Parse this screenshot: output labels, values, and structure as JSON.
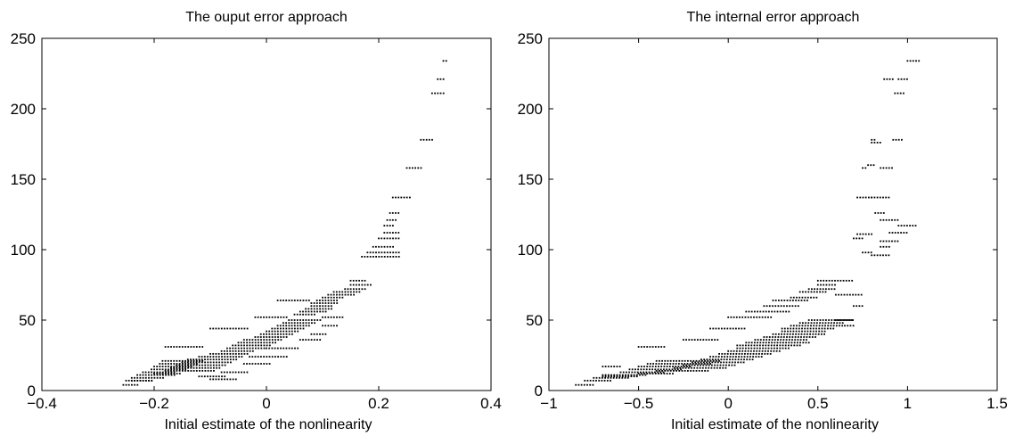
{
  "chart_data": [
    {
      "type": "scatter",
      "title": "The ouput error approach",
      "xlabel": "Initial estimate of the nonlinearity",
      "ylabel": "",
      "xlim": [
        -0.4,
        0.4
      ],
      "ylim": [
        0,
        250
      ],
      "xticks": [
        -0.4,
        -0.2,
        0,
        0.2,
        0.4
      ],
      "xtick_labels": [
        "−0.4",
        "−0.2",
        "0",
        "0.2",
        "0.4"
      ],
      "yticks": [
        0,
        50,
        100,
        150,
        200,
        250
      ],
      "ytick_labels": [
        "0",
        "50",
        "100",
        "150",
        "200",
        "250"
      ],
      "grid": false,
      "marker_color": "#000000",
      "series": [
        {
          "segments": [
            [
              -0.255,
              -0.225,
              4
            ],
            [
              -0.25,
              -0.2,
              7
            ],
            [
              -0.24,
              -0.18,
              9
            ],
            [
              -0.23,
              -0.16,
              11
            ],
            [
              -0.22,
              -0.16,
              13
            ],
            [
              -0.205,
              -0.14,
              15
            ],
            [
              -0.2,
              -0.13,
              17
            ],
            [
              -0.19,
              -0.12,
              19
            ],
            [
              -0.185,
              -0.11,
              21
            ],
            [
              -0.24,
              -0.2,
              7
            ],
            [
              -0.2,
              -0.15,
              12
            ],
            [
              -0.18,
              -0.09,
              14
            ],
            [
              -0.17,
              -0.08,
              16
            ],
            [
              -0.16,
              -0.07,
              18
            ],
            [
              -0.15,
              -0.06,
              20
            ],
            [
              -0.14,
              -0.05,
              22
            ],
            [
              -0.12,
              -0.04,
              24
            ],
            [
              -0.1,
              -0.03,
              26
            ],
            [
              -0.08,
              -0.02,
              28
            ],
            [
              -0.07,
              0.0,
              30
            ],
            [
              -0.06,
              0.01,
              32
            ],
            [
              -0.05,
              0.02,
              34
            ],
            [
              -0.04,
              0.03,
              36
            ],
            [
              -0.02,
              0.04,
              38
            ],
            [
              -0.01,
              0.05,
              40
            ],
            [
              0.0,
              0.06,
              42
            ],
            [
              0.01,
              0.07,
              44
            ],
            [
              0.02,
              0.08,
              46
            ],
            [
              0.03,
              0.09,
              48
            ],
            [
              0.04,
              0.1,
              50
            ],
            [
              -0.12,
              -0.07,
              10
            ],
            [
              -0.1,
              -0.05,
              8
            ],
            [
              -0.08,
              -0.03,
              13
            ],
            [
              -0.04,
              0.01,
              19
            ],
            [
              -0.03,
              0.04,
              24
            ],
            [
              0.0,
              0.06,
              30
            ],
            [
              -0.18,
              -0.11,
              31
            ],
            [
              -0.1,
              -0.03,
              44
            ],
            [
              -0.02,
              0.04,
              52
            ],
            [
              0.05,
              0.09,
              54
            ],
            [
              0.06,
              0.11,
              56
            ],
            [
              0.07,
              0.12,
              58
            ],
            [
              0.08,
              0.12,
              60
            ],
            [
              0.08,
              0.13,
              62
            ],
            [
              0.09,
              0.13,
              64
            ],
            [
              0.1,
              0.14,
              66
            ],
            [
              0.11,
              0.16,
              68
            ],
            [
              0.12,
              0.17,
              70
            ],
            [
              0.06,
              0.1,
              36
            ],
            [
              0.08,
              0.11,
              40
            ],
            [
              0.1,
              0.13,
              46
            ],
            [
              0.1,
              0.14,
              52
            ],
            [
              0.02,
              0.08,
              64
            ],
            [
              0.14,
              0.18,
              72
            ],
            [
              0.15,
              0.19,
              75
            ],
            [
              0.15,
              0.18,
              78
            ],
            [
              0.17,
              0.24,
              95
            ],
            [
              0.18,
              0.24,
              98
            ],
            [
              0.19,
              0.23,
              102
            ],
            [
              0.2,
              0.24,
              108
            ],
            [
              0.21,
              0.24,
              112
            ],
            [
              0.21,
              0.23,
              117
            ],
            [
              0.215,
              0.235,
              121
            ],
            [
              0.22,
              0.24,
              126
            ],
            [
              0.225,
              0.26,
              137
            ],
            [
              0.25,
              0.28,
              158
            ],
            [
              0.275,
              0.3,
              178
            ],
            [
              0.295,
              0.32,
              211
            ],
            [
              0.305,
              0.32,
              221
            ],
            [
              0.315,
              0.325,
              234
            ]
          ]
        }
      ]
    },
    {
      "type": "scatter",
      "title": "The internal error approach",
      "xlabel": "Initial estimate of the nonlinearity",
      "ylabel": "",
      "xlim": [
        -1,
        1.5
      ],
      "ylim": [
        0,
        250
      ],
      "xticks": [
        -1,
        -0.5,
        0,
        0.5,
        1,
        1.5
      ],
      "xtick_labels": [
        "−1",
        "−0.5",
        "0",
        "0.5",
        "1",
        "1.5"
      ],
      "yticks": [
        0,
        50,
        100,
        150,
        200,
        250
      ],
      "ytick_labels": [
        "0",
        "50",
        "100",
        "150",
        "200",
        "250"
      ],
      "grid": false,
      "marker_color": "#000000",
      "series": [
        {
          "segments": [
            [
              -0.85,
              -0.75,
              4
            ],
            [
              -0.8,
              -0.65,
              7
            ],
            [
              -0.75,
              -0.55,
              9
            ],
            [
              -0.7,
              -0.45,
              11
            ],
            [
              -0.6,
              -0.35,
              13
            ],
            [
              -0.55,
              -0.25,
              15
            ],
            [
              -0.5,
              -0.2,
              17
            ],
            [
              -0.45,
              -0.1,
              19
            ],
            [
              -0.4,
              -0.05,
              21
            ],
            [
              -0.7,
              -0.5,
              10
            ],
            [
              -0.5,
              -0.3,
              12
            ],
            [
              -0.4,
              -0.1,
              14
            ],
            [
              -0.3,
              0.0,
              16
            ],
            [
              -0.25,
              0.05,
              18
            ],
            [
              -0.2,
              0.1,
              20
            ],
            [
              -0.15,
              0.15,
              22
            ],
            [
              -0.1,
              0.2,
              24
            ],
            [
              -0.05,
              0.25,
              26
            ],
            [
              0.0,
              0.3,
              28
            ],
            [
              0.05,
              0.35,
              30
            ],
            [
              0.05,
              0.4,
              32
            ],
            [
              0.1,
              0.45,
              34
            ],
            [
              0.15,
              0.45,
              36
            ],
            [
              0.2,
              0.5,
              38
            ],
            [
              0.25,
              0.55,
              40
            ],
            [
              0.3,
              0.55,
              42
            ],
            [
              0.3,
              0.6,
              44
            ],
            [
              0.35,
              0.65,
              46
            ],
            [
              0.4,
              0.65,
              48
            ],
            [
              0.45,
              0.7,
              50
            ],
            [
              -0.7,
              -0.6,
              17
            ],
            [
              -0.5,
              -0.35,
              31
            ],
            [
              -0.25,
              -0.05,
              36
            ],
            [
              -0.1,
              0.1,
              44
            ],
            [
              0.0,
              0.25,
              52
            ],
            [
              0.1,
              0.35,
              56
            ],
            [
              0.2,
              0.4,
              60
            ],
            [
              0.25,
              0.45,
              64
            ],
            [
              0.35,
              0.5,
              66
            ],
            [
              0.4,
              0.55,
              70
            ],
            [
              0.45,
              0.6,
              72
            ],
            [
              0.5,
              0.6,
              75
            ],
            [
              0.5,
              0.7,
              78
            ],
            [
              0.6,
              0.75,
              68
            ],
            [
              0.6,
              0.7,
              50
            ],
            [
              0.65,
              0.7,
              46
            ],
            [
              0.7,
              0.75,
              60
            ],
            [
              0.75,
              0.8,
              98
            ],
            [
              0.8,
              0.9,
              96
            ],
            [
              0.85,
              0.9,
              102
            ],
            [
              0.85,
              0.95,
              106
            ],
            [
              0.9,
              1.0,
              112
            ],
            [
              0.95,
              1.05,
              117
            ],
            [
              0.7,
              0.75,
              108
            ],
            [
              0.72,
              0.8,
              111
            ],
            [
              0.72,
              0.8,
              137
            ],
            [
              0.8,
              0.9,
              137
            ],
            [
              0.82,
              0.88,
              126
            ],
            [
              0.85,
              0.95,
              121
            ],
            [
              0.75,
              0.78,
              158
            ],
            [
              0.8,
              0.85,
              176
            ],
            [
              0.85,
              0.92,
              158
            ],
            [
              0.92,
              0.98,
              178
            ],
            [
              0.87,
              0.92,
              221
            ],
            [
              0.95,
              1.0,
              221
            ],
            [
              0.93,
              0.99,
              211
            ],
            [
              1.0,
              1.07,
              234
            ],
            [
              0.8,
              0.83,
              178
            ],
            [
              0.78,
              0.82,
              160
            ]
          ]
        }
      ]
    }
  ]
}
